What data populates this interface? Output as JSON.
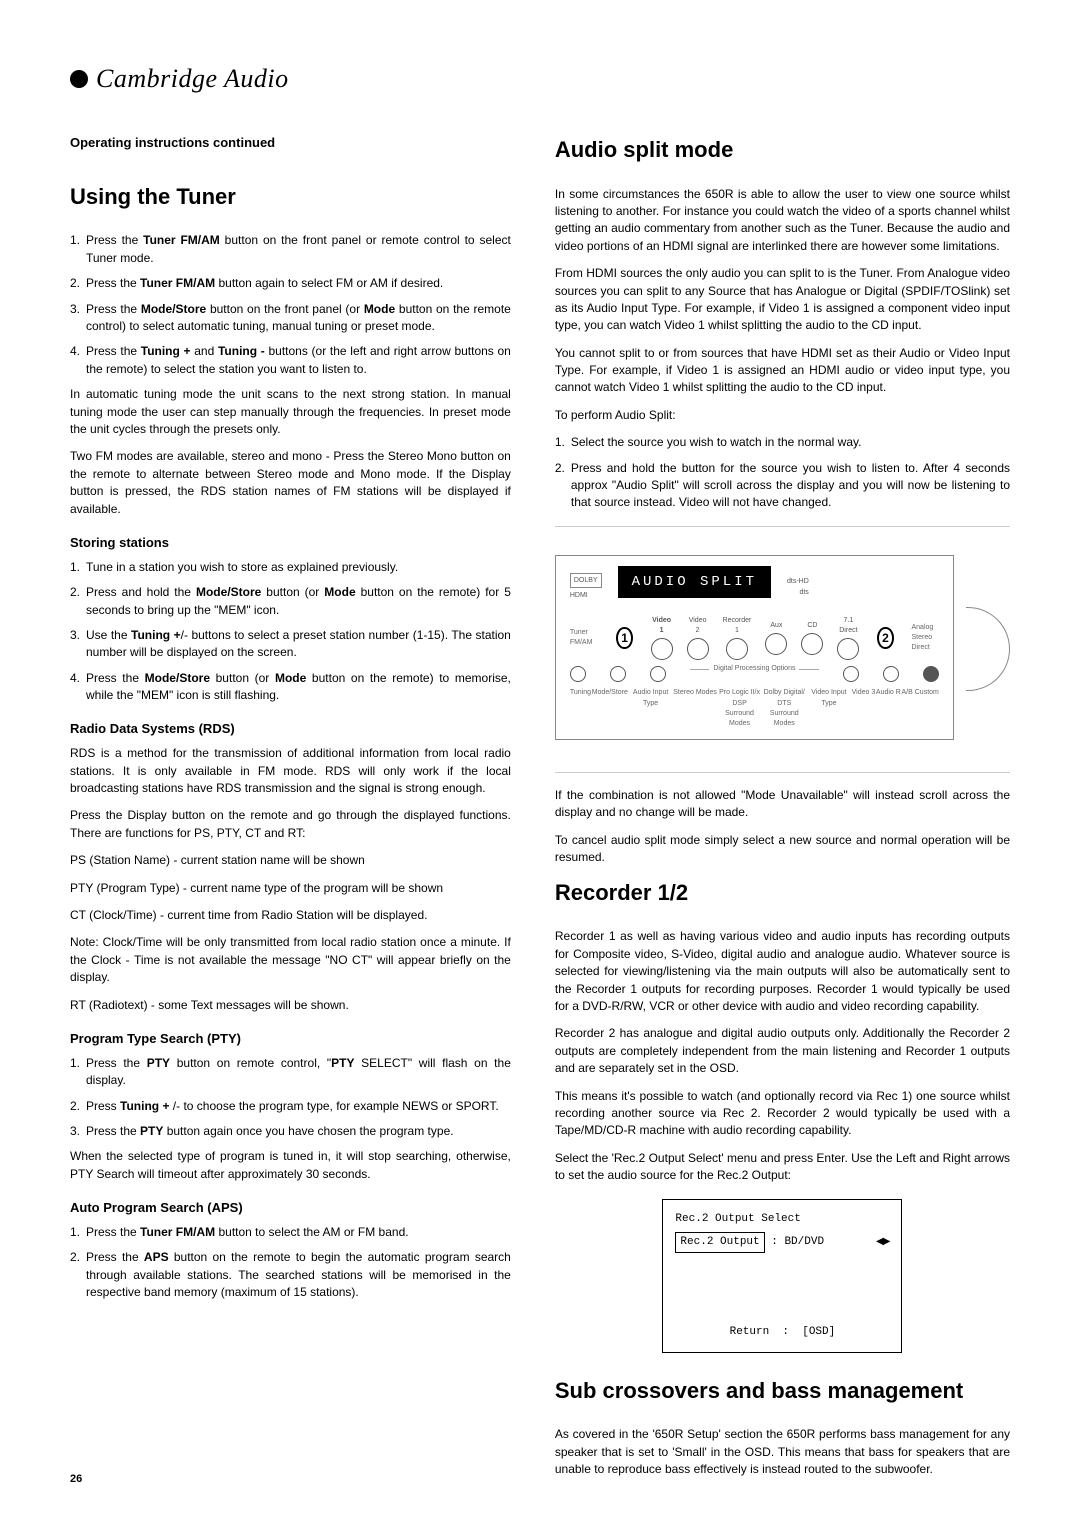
{
  "brand": "Cambridge Audio",
  "section_label": "Operating instructions continued",
  "page_number": "26",
  "left": {
    "h1": "Using the Tuner",
    "steps1": [
      "Press the Tuner FM/AM button on the front panel or remote control to select Tuner mode.",
      "Press the Tuner FM/AM button again to select FM or AM if desired.",
      "Press the Mode/Store button on the front panel (or Mode button on the remote control) to select automatic tuning, manual tuning or preset mode.",
      "Press the Tuning + and Tuning - buttons (or the left and right arrow buttons on the remote) to select the station you want to listen to."
    ],
    "p1": "In automatic tuning mode the unit scans to the next strong station. In manual tuning mode the user can step manually through the frequencies. In preset mode the unit cycles through the presets only.",
    "p2": "Two FM modes are available, stereo and mono - Press the Stereo Mono button on the remote to alternate between Stereo mode and Mono mode. If the Display button is pressed, the RDS station names of FM stations will be displayed if available.",
    "h2a": "Storing stations",
    "steps2": [
      "Tune in a station you wish to store as explained previously.",
      "Press and hold the Mode/Store button (or Mode button on the remote) for 5 seconds to bring up the \"MEM\" icon.",
      "Use the Tuning +/- buttons to select a preset station number (1-15). The station number will be displayed on the screen.",
      "Press the Mode/Store button (or Mode button on the remote) to memorise, while the \"MEM\" icon is still flashing."
    ],
    "h2b": "Radio Data Systems (RDS)",
    "p3": "RDS is a method for the transmission of additional information from local radio stations. It is only available in FM mode. RDS will only work if the local broadcasting stations have RDS transmission and the signal is strong enough.",
    "p4": "Press the Display button on the remote and go through the displayed functions. There are functions for PS, PTY, CT and RT:",
    "p5": "PS (Station Name) - current station name will be shown",
    "p6": "PTY (Program Type) - current name type of the program will be shown",
    "p7": "CT (Clock/Time) - current time from Radio Station will be displayed.",
    "p8": "Note: Clock/Time will be only transmitted from local radio station once a minute. If the Clock - Time is not available the message \"NO CT\" will appear briefly on the display.",
    "p9": "RT (Radiotext) - some Text messages will be shown.",
    "h2c": "Program Type Search (PTY)",
    "steps3": [
      "Press the PTY button on remote control, \"PTY SELECT\" will flash on the display.",
      "Press Tuning + /- to choose the program type, for example NEWS or SPORT.",
      "Press the PTY button again once you have chosen the program type."
    ],
    "p10": "When the selected type of program is tuned in, it will stop searching, otherwise, PTY Search will timeout after approximately 30 seconds.",
    "h2d": "Auto Program Search (APS)",
    "steps4": [
      "Press the Tuner FM/AM button to select the AM or FM band.",
      "Press the APS button on the remote to begin the automatic program search through available stations. The searched stations will be memorised in the respective band memory (maximum of 15 stations)."
    ]
  },
  "right": {
    "h1a": "Audio split mode",
    "p1": "In some circumstances the 650R is able to allow the user to view one source whilst listening to another. For instance you could watch the video of a sports channel whilst getting an audio commentary from another such as the Tuner. Because the audio and video portions of an HDMI signal are interlinked there are however some limitations.",
    "p2": "From HDMI sources the only audio you can split to is the Tuner. From Analogue video sources you can split to any Source that has Analogue or Digital (SPDIF/TOSlink) set as its Audio Input Type. For example, if Video 1 is assigned a component video input type, you can watch Video 1 whilst splitting the audio to the CD input.",
    "p3": "You cannot split to or from sources that have HDMI set as their Audio or Video Input Type. For example, if Video 1 is assigned an HDMI audio or video input type, you cannot watch Video 1 whilst splitting the audio to the CD input.",
    "p4": "To perform Audio Split:",
    "steps1": [
      "Select the source you wish to watch in the normal way.",
      "Press and hold the button for the source you wish to listen to. After 4 seconds approx \"Audio Split\" will scroll across the display and you will now be listening to that source instead. Video will not have changed."
    ],
    "panel": {
      "display_text": "AUDIO SPLIT",
      "callout1": "1",
      "callout2": "2",
      "labels": [
        "Video 1",
        "Video 2",
        "Recorder 1",
        "Aux",
        "CD",
        "7.1 Direct"
      ],
      "left_badges": [
        "DOLBY",
        "HDMI"
      ],
      "right_badges": [
        "dts-HD",
        "dts"
      ],
      "bottom_labels": [
        "Tuning",
        "Mode/Store",
        "Audio Input Type",
        "Stereo Modes",
        "Pro Logic II/x DSP Surround Modes",
        "Dolby Digital/ DTS Surround Modes",
        "Video Input Type",
        "Video 3",
        "Audio R",
        "A/B Custom"
      ]
    },
    "p5": "If the combination is not allowed \"Mode Unavailable\" will instead scroll across the display and no change will be made.",
    "p6": "To cancel audio split mode simply select a new source and normal operation will be resumed.",
    "h1b": "Recorder 1/2",
    "p7": "Recorder 1 as well as having various video and audio inputs has recording outputs for Composite video, S-Video, digital audio and analogue audio. Whatever source is selected for viewing/listening via the main outputs will also be automatically sent to the Recorder 1 outputs for recording purposes. Recorder 1 would typically be used for a DVD-R/RW, VCR or other device with audio and video recording capability.",
    "p8": "Recorder 2 has analogue and digital audio outputs only. Additionally the Recorder 2 outputs are completely independent from the main listening and Recorder 1 outputs and are separately set in the OSD.",
    "p9": "This means it's possible to watch (and optionally record via Rec 1) one source whilst recording another source via Rec 2. Recorder 2 would typically be used with a Tape/MD/CD-R machine with audio recording capability.",
    "p10": "Select the 'Rec.2 Output Select' menu and press Enter. Use the Left and Right arrows to set the audio source for the Rec.2 Output:",
    "osd": {
      "title": "Rec.2 Output Select",
      "row_label": "Rec.2 Output",
      "row_value": "BD/DVD",
      "return_label": "Return",
      "return_value": "[OSD]"
    },
    "h1c": "Sub crossovers and bass management",
    "p11": "As covered in the '650R Setup' section the 650R performs bass management for any speaker that is set to 'Small' in the OSD. This means that bass for speakers that are unable to reproduce bass effectively is instead routed to the subwoofer."
  }
}
